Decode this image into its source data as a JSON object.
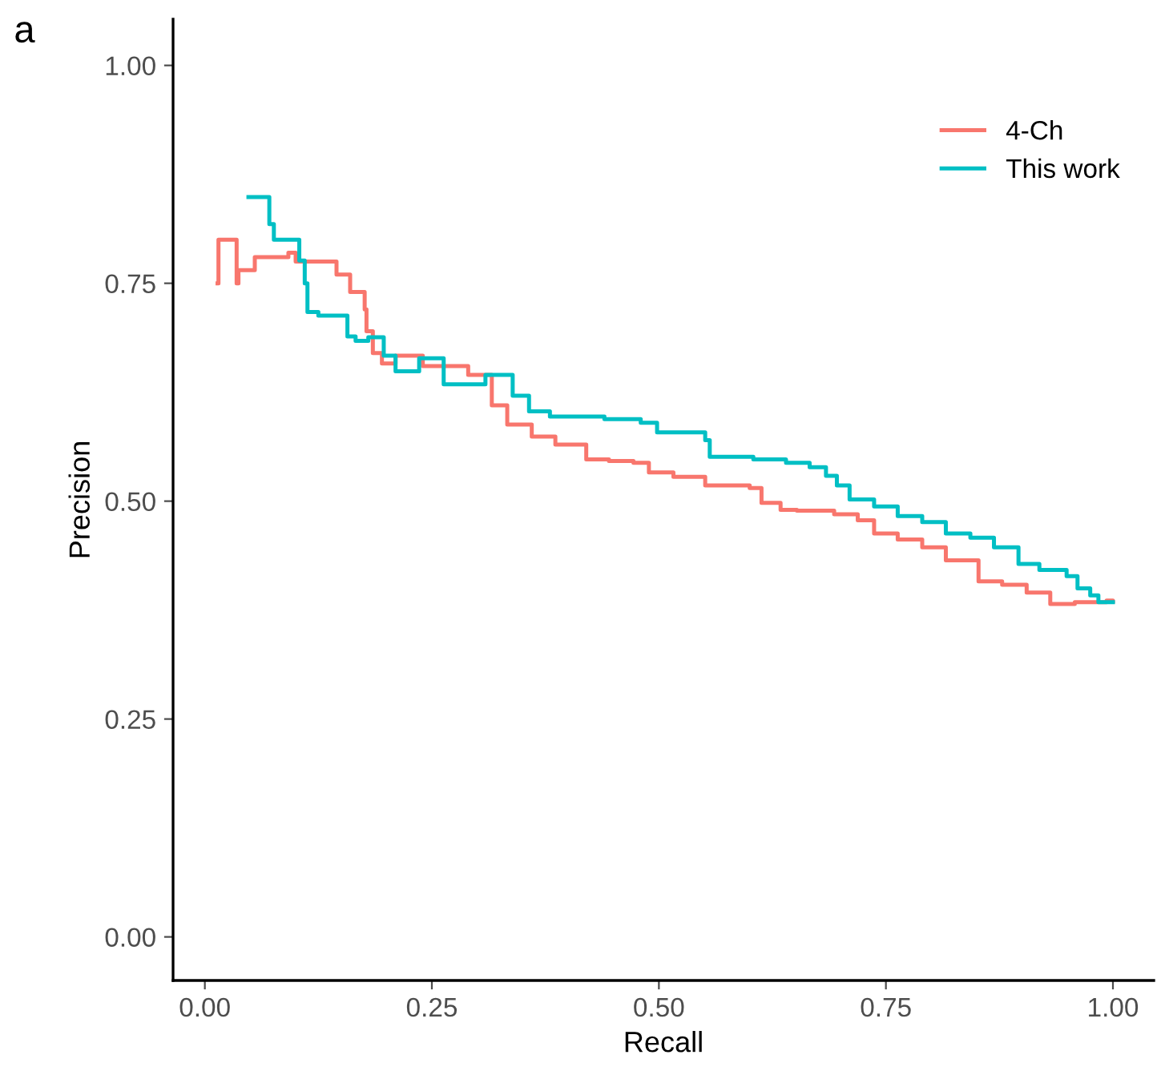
{
  "chart_data": {
    "type": "step",
    "title": "a",
    "xlabel": "Recall",
    "ylabel": "Precision",
    "xlim": [
      -0.035,
      1.045
    ],
    "ylim": [
      -0.05,
      1.053
    ],
    "xticks": [
      {
        "value": 0,
        "label": "0.00"
      },
      {
        "value": 0.25,
        "label": "0.25"
      },
      {
        "value": 0.5,
        "label": "0.50"
      },
      {
        "value": 0.75,
        "label": "0.75"
      },
      {
        "value": 1,
        "label": "1.00"
      }
    ],
    "yticks": [
      {
        "value": 0,
        "label": "0.00"
      },
      {
        "value": 0.25,
        "label": "0.25"
      },
      {
        "value": 0.5,
        "label": "0.50"
      },
      {
        "value": 0.75,
        "label": "0.75"
      },
      {
        "value": 1,
        "label": "1.00"
      }
    ],
    "grid": false,
    "legend": "top right",
    "series": [
      {
        "name": "4-Ch",
        "color": "#f8766d",
        "x": [
          0.014,
          0.015,
          0.035,
          0.037,
          0.055,
          0.092,
          0.1,
          0.145,
          0.16,
          0.176,
          0.178,
          0.185,
          0.195,
          0.21,
          0.24,
          0.29,
          0.316,
          0.333,
          0.36,
          0.386,
          0.42,
          0.445,
          0.472,
          0.489,
          0.516,
          0.551,
          0.6,
          0.613,
          0.634,
          0.652,
          0.693,
          0.719,
          0.737,
          0.763,
          0.79,
          0.816,
          0.852,
          0.878,
          0.905,
          0.931,
          0.958,
          0.993,
          1.0
        ],
        "values": [
          0.75,
          0.8,
          0.75,
          0.765,
          0.78,
          0.785,
          0.775,
          0.76,
          0.74,
          0.72,
          0.695,
          0.67,
          0.658,
          0.667,
          0.655,
          0.645,
          0.61,
          0.588,
          0.574,
          0.565,
          0.548,
          0.546,
          0.544,
          0.533,
          0.528,
          0.518,
          0.515,
          0.498,
          0.49,
          0.489,
          0.485,
          0.478,
          0.463,
          0.456,
          0.447,
          0.432,
          0.408,
          0.404,
          0.395,
          0.382,
          0.384,
          0.386,
          0.385
        ]
      },
      {
        "name": "This work",
        "color": "#00bfc4",
        "x": [
          0.048,
          0.071,
          0.076,
          0.104,
          0.11,
          0.113,
          0.125,
          0.157,
          0.166,
          0.18,
          0.197,
          0.21,
          0.236,
          0.263,
          0.309,
          0.339,
          0.357,
          0.38,
          0.44,
          0.48,
          0.498,
          0.551,
          0.556,
          0.604,
          0.64,
          0.666,
          0.684,
          0.696,
          0.71,
          0.737,
          0.763,
          0.79,
          0.816,
          0.843,
          0.869,
          0.896,
          0.919,
          0.949,
          0.961,
          0.975,
          0.984,
          1.0
        ],
        "values": [
          0.849,
          0.818,
          0.8,
          0.776,
          0.75,
          0.717,
          0.713,
          0.689,
          0.684,
          0.688,
          0.667,
          0.649,
          0.664,
          0.634,
          0.645,
          0.621,
          0.603,
          0.597,
          0.594,
          0.59,
          0.579,
          0.57,
          0.551,
          0.548,
          0.544,
          0.539,
          0.529,
          0.518,
          0.502,
          0.494,
          0.483,
          0.476,
          0.463,
          0.458,
          0.447,
          0.428,
          0.421,
          0.414,
          0.4,
          0.392,
          0.384,
          0.384
        ]
      }
    ]
  }
}
